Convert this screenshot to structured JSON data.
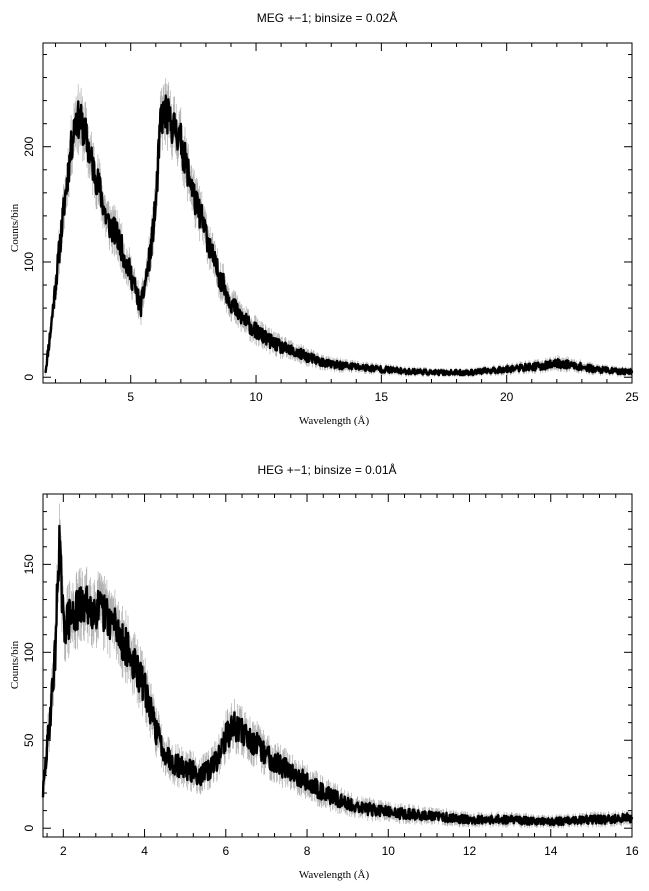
{
  "chart_data": [
    {
      "type": "line",
      "title": "MEG +−1; binsize = 0.02Å",
      "xlabel": "Wavelength (Å)",
      "ylabel": "Counts/bin",
      "xlim": [
        1.5,
        25
      ],
      "ylim": [
        -5,
        290
      ],
      "xticks": [
        5,
        10,
        15,
        20,
        25
      ],
      "yticks": [
        0,
        100,
        200
      ],
      "grid": false,
      "series_color": "#000000",
      "error_color": "#b0b0b0",
      "x": [
        1.6,
        1.8,
        2.0,
        2.2,
        2.4,
        2.6,
        2.8,
        3.0,
        3.2,
        3.4,
        3.6,
        3.8,
        4.0,
        4.2,
        4.4,
        4.6,
        4.8,
        5.0,
        5.2,
        5.4,
        5.6,
        5.8,
        6.0,
        6.2,
        6.4,
        6.6,
        6.8,
        7.0,
        7.2,
        7.4,
        7.6,
        7.8,
        8.0,
        8.2,
        8.4,
        8.6,
        8.8,
        9.0,
        9.3,
        9.6,
        10.0,
        10.5,
        11.0,
        11.5,
        12.0,
        12.5,
        13.0,
        13.5,
        14.0,
        14.5,
        15.0,
        15.5,
        16.0,
        16.5,
        17.0,
        17.5,
        18.0,
        18.5,
        19.0,
        19.5,
        20.0,
        20.5,
        21.0,
        21.5,
        22.0,
        22.5,
        23.0,
        23.5,
        24.0,
        24.5,
        25.0
      ],
      "y": [
        5,
        40,
        80,
        120,
        160,
        195,
        225,
        222,
        210,
        190,
        175,
        160,
        140,
        130,
        125,
        115,
        100,
        90,
        75,
        60,
        85,
        110,
        150,
        225,
        230,
        220,
        215,
        205,
        185,
        170,
        150,
        140,
        125,
        110,
        95,
        85,
        75,
        65,
        55,
        48,
        40,
        32,
        26,
        22,
        18,
        14,
        11,
        10,
        9,
        8,
        7,
        6,
        5,
        5,
        4,
        4,
        4,
        4,
        5,
        6,
        7,
        8,
        9,
        10,
        12,
        11,
        9,
        7,
        6,
        5,
        5
      ]
    },
    {
      "type": "line",
      "title": "HEG +−1; binsize = 0.01Å",
      "xlabel": "Wavelength (Å)",
      "ylabel": "Counts/bin",
      "xlim": [
        1.5,
        16
      ],
      "ylim": [
        -5,
        190
      ],
      "xticks": [
        2,
        4,
        6,
        8,
        10,
        12,
        14,
        16
      ],
      "yticks": [
        0,
        50,
        100,
        150
      ],
      "grid": false,
      "series_color": "#000000",
      "error_color": "#b0b0b0",
      "x": [
        1.5,
        1.6,
        1.7,
        1.8,
        1.9,
        2.0,
        2.2,
        2.4,
        2.6,
        2.8,
        3.0,
        3.2,
        3.4,
        3.6,
        3.8,
        4.0,
        4.2,
        4.4,
        4.6,
        4.8,
        5.0,
        5.2,
        5.4,
        5.6,
        5.8,
        6.0,
        6.2,
        6.4,
        6.6,
        6.8,
        7.0,
        7.2,
        7.4,
        7.6,
        7.8,
        8.0,
        8.3,
        8.6,
        9.0,
        9.5,
        10.0,
        10.5,
        11.0,
        11.5,
        12.0,
        12.5,
        13.0,
        13.5,
        14.0,
        14.5,
        15.0,
        15.5,
        16.0
      ],
      "y": [
        20,
        45,
        70,
        100,
        165,
        115,
        120,
        125,
        127,
        125,
        122,
        118,
        110,
        100,
        90,
        80,
        62,
        48,
        40,
        36,
        34,
        32,
        30,
        33,
        40,
        52,
        58,
        55,
        50,
        46,
        42,
        38,
        35,
        32,
        30,
        26,
        22,
        18,
        14,
        11,
        9,
        8,
        7,
        6,
        5,
        5,
        5,
        4,
        4,
        4,
        5,
        5,
        6
      ]
    }
  ]
}
